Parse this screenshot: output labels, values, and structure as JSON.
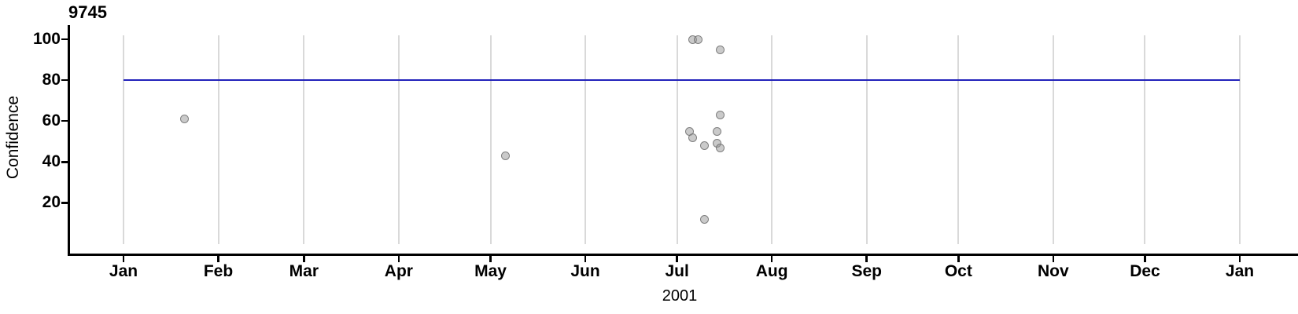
{
  "chart_data": {
    "type": "scatter",
    "title": "9745",
    "xlabel": "2001",
    "ylabel": "Confidence",
    "x_axis": {
      "unit": "month of 2001",
      "ticks": [
        {
          "label": "Jan",
          "day": 0
        },
        {
          "label": "Feb",
          "day": 31
        },
        {
          "label": "Mar",
          "day": 59
        },
        {
          "label": "Apr",
          "day": 90
        },
        {
          "label": "May",
          "day": 120
        },
        {
          "label": "Jun",
          "day": 151
        },
        {
          "label": "Jul",
          "day": 181
        },
        {
          "label": "Aug",
          "day": 212
        },
        {
          "label": "Sep",
          "day": 243
        },
        {
          "label": "Oct",
          "day": 273
        },
        {
          "label": "Nov",
          "day": 304
        },
        {
          "label": "Dec",
          "day": 334
        },
        {
          "label": "Jan",
          "day": 365
        }
      ]
    },
    "y_axis": {
      "label": "Confidence",
      "ticks": [
        20,
        40,
        60,
        80,
        100
      ],
      "range_shown": [
        -5,
        107
      ]
    },
    "grid": true,
    "legend": false,
    "reference_line": {
      "value": 80,
      "day_start": 0,
      "day_end": 365
    },
    "points": [
      {
        "date": "2001-01-21",
        "day": 20,
        "confidence": 61
      },
      {
        "date": "2001-05-06",
        "day": 125,
        "confidence": 43
      },
      {
        "date": "2001-07-05",
        "day": 185,
        "confidence": 55
      },
      {
        "date": "2001-07-06",
        "day": 186,
        "confidence": 100
      },
      {
        "date": "2001-07-06",
        "day": 186,
        "confidence": 52
      },
      {
        "date": "2001-07-08",
        "day": 188,
        "confidence": 100
      },
      {
        "date": "2001-07-10",
        "day": 190,
        "confidence": 48
      },
      {
        "date": "2001-07-10",
        "day": 190,
        "confidence": 12
      },
      {
        "date": "2001-07-14",
        "day": 194,
        "confidence": 55
      },
      {
        "date": "2001-07-14",
        "day": 194,
        "confidence": 49
      },
      {
        "date": "2001-07-15",
        "day": 195,
        "confidence": 95
      },
      {
        "date": "2001-07-15",
        "day": 195,
        "confidence": 63
      },
      {
        "date": "2001-07-15",
        "day": 195,
        "confidence": 47
      }
    ]
  },
  "colors": {
    "axis": "#000000",
    "grid": "#d9d9d9",
    "reference_line": "#2222bb",
    "point_fill": "#969696",
    "point_stroke": "#6e6e6e",
    "background": "#ffffff"
  },
  "point_style": {
    "radius": 5.5,
    "fill_opacity": 0.5,
    "stroke_opacity": 0.8
  }
}
